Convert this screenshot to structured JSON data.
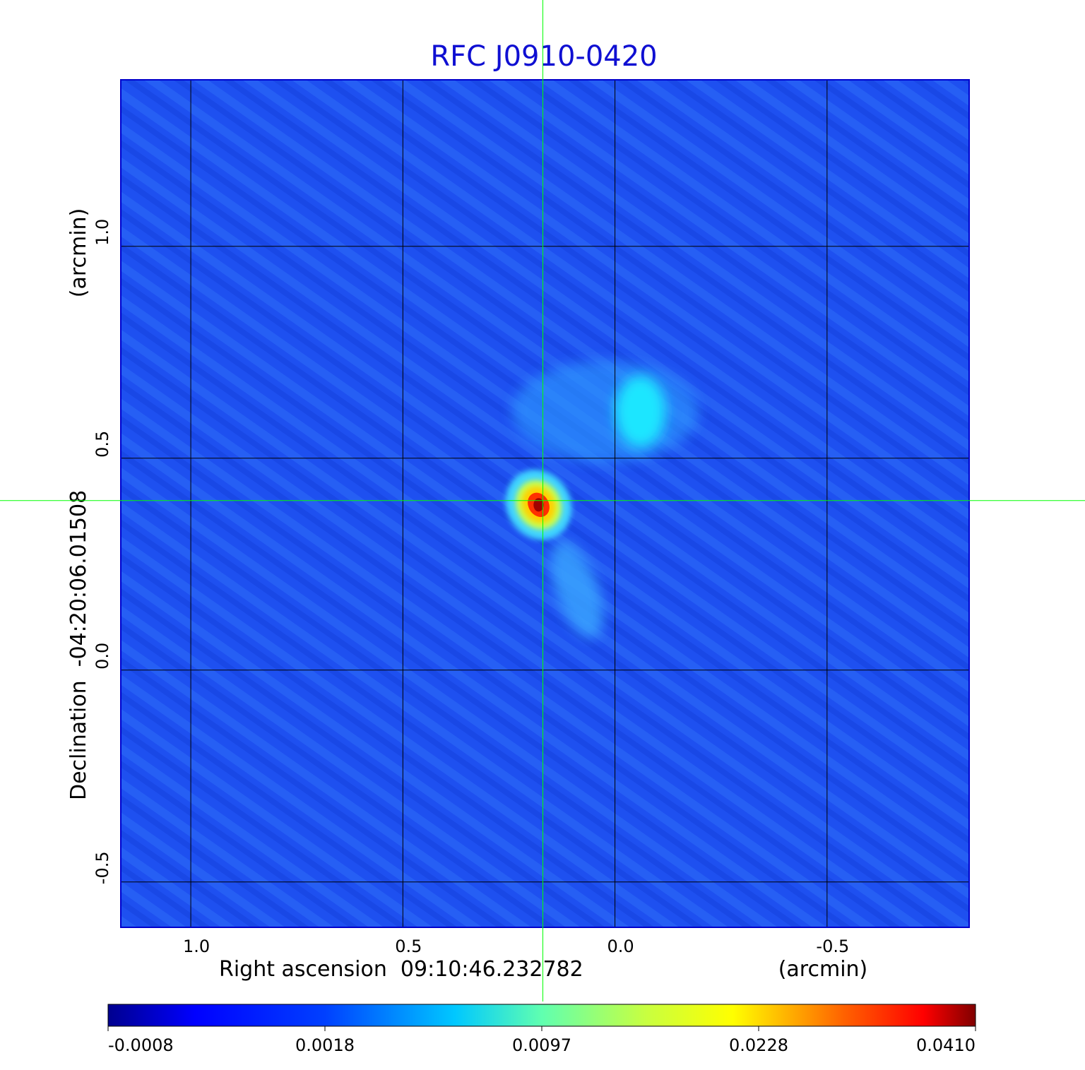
{
  "chart_data": {
    "type": "heatmap",
    "title": "RFC J0910-0420",
    "xlabel": "Right ascension  09:10:46.232782",
    "xunit": "(arcmin)",
    "ylabel": "Declination  -04:20:06.01508",
    "yunit": "(arcmin)",
    "xlim": [
      1.165,
      -0.835
    ],
    "ylim": [
      -0.607,
      1.393
    ],
    "x_ticks": [
      1.0,
      0.5,
      0.0,
      -0.5
    ],
    "x_tick_labels": [
      "1.0",
      "0.5",
      "0.0",
      "-0.5"
    ],
    "y_ticks": [
      1.0,
      0.5,
      0.0,
      -0.5
    ],
    "y_tick_labels": [
      "1.0",
      "0.5",
      "0.0",
      "-0.5"
    ],
    "grid": true,
    "crosshair": {
      "x": 0.17,
      "y": 0.4
    },
    "colormap": "jet",
    "colorbar": {
      "ticks": [
        -0.0008,
        0.0018,
        0.0097,
        0.0228,
        0.041
      ],
      "tick_labels": [
        "-0.0008",
        "0.0018",
        "0.0097",
        "0.0228",
        "0.0410"
      ]
    },
    "sources": [
      {
        "name": "core",
        "x": 0.18,
        "y": 0.39,
        "peak": 0.041
      },
      {
        "name": "blob",
        "x": -0.06,
        "y": 0.61,
        "peak": 0.0055
      },
      {
        "name": "tail",
        "x": 0.09,
        "y": 0.19,
        "peak": 0.0028
      }
    ]
  },
  "colors": {
    "title": "#0f0fd2",
    "grid": "#000000",
    "crosshair": "#00ff00",
    "frame": "#0000cc"
  }
}
